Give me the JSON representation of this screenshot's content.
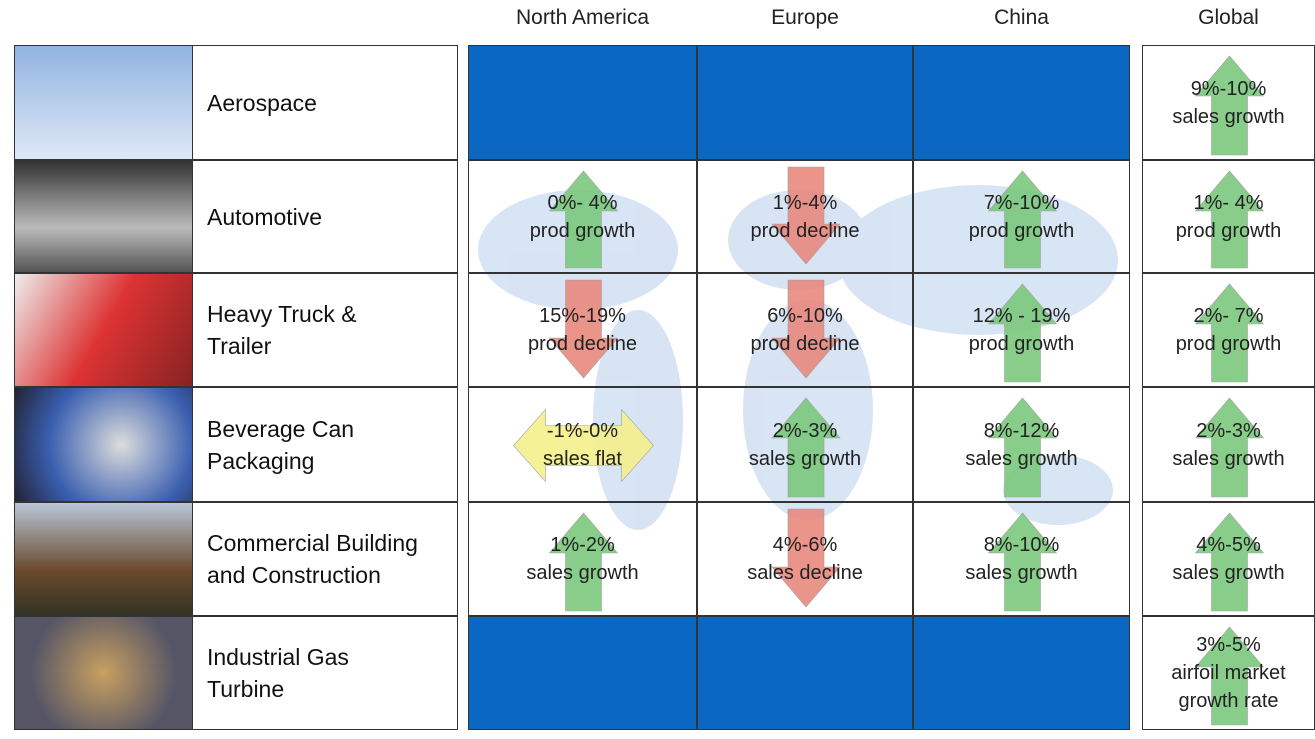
{
  "header": {
    "columns": [
      "North America",
      "Europe",
      "China",
      "Global"
    ]
  },
  "table": {
    "rows": [
      {
        "label": [
          "Aerospace"
        ],
        "cells": [
          null,
          null,
          null,
          {
            "lines": [
              "9%-10%",
              "sales growth"
            ],
            "arrow": "up"
          }
        ]
      },
      {
        "label": [
          "Automotive"
        ],
        "cells": [
          {
            "lines": [
              "0%- 4%",
              "prod growth"
            ],
            "arrow": "up"
          },
          {
            "lines": [
              "1%-4%",
              "prod decline"
            ],
            "arrow": "down"
          },
          {
            "lines": [
              "7%-10%",
              "prod growth"
            ],
            "arrow": "up"
          },
          {
            "lines": [
              "1%- 4%",
              "prod growth"
            ],
            "arrow": "up"
          }
        ]
      },
      {
        "label": [
          "Heavy Truck &",
          "Trailer"
        ],
        "cells": [
          {
            "lines": [
              "15%-19%",
              "prod decline"
            ],
            "arrow": "down"
          },
          {
            "lines": [
              "6%-10%",
              "prod decline"
            ],
            "arrow": "down"
          },
          {
            "lines": [
              "12% - 19%",
              "prod growth"
            ],
            "arrow": "up"
          },
          {
            "lines": [
              "2%- 7%",
              "prod growth"
            ],
            "arrow": "up"
          }
        ]
      },
      {
        "label": [
          "Beverage Can",
          "Packaging"
        ],
        "cells": [
          {
            "lines": [
              "-1%-0%",
              "sales flat"
            ],
            "arrow": "flat"
          },
          {
            "lines": [
              "2%-3%",
              "sales growth"
            ],
            "arrow": "up"
          },
          {
            "lines": [
              "8%-12%",
              "sales growth"
            ],
            "arrow": "up"
          },
          {
            "lines": [
              "2%-3%",
              "sales growth"
            ],
            "arrow": "up"
          }
        ]
      },
      {
        "label": [
          "Commercial Building",
          "and Construction"
        ],
        "cells": [
          {
            "lines": [
              "1%-2%",
              "sales growth"
            ],
            "arrow": "up"
          },
          {
            "lines": [
              "4%-6%",
              "sales decline"
            ],
            "arrow": "down"
          },
          {
            "lines": [
              "8%-10%",
              "sales growth"
            ],
            "arrow": "up"
          },
          {
            "lines": [
              "4%-5%",
              "sales growth"
            ],
            "arrow": "up"
          }
        ]
      },
      {
        "label": [
          "Industrial Gas",
          "Turbine"
        ],
        "cells": [
          null,
          null,
          null,
          {
            "lines": [
              "3%-5%",
              "airfoil market",
              "growth rate"
            ],
            "arrow": "up"
          }
        ]
      }
    ]
  }
}
